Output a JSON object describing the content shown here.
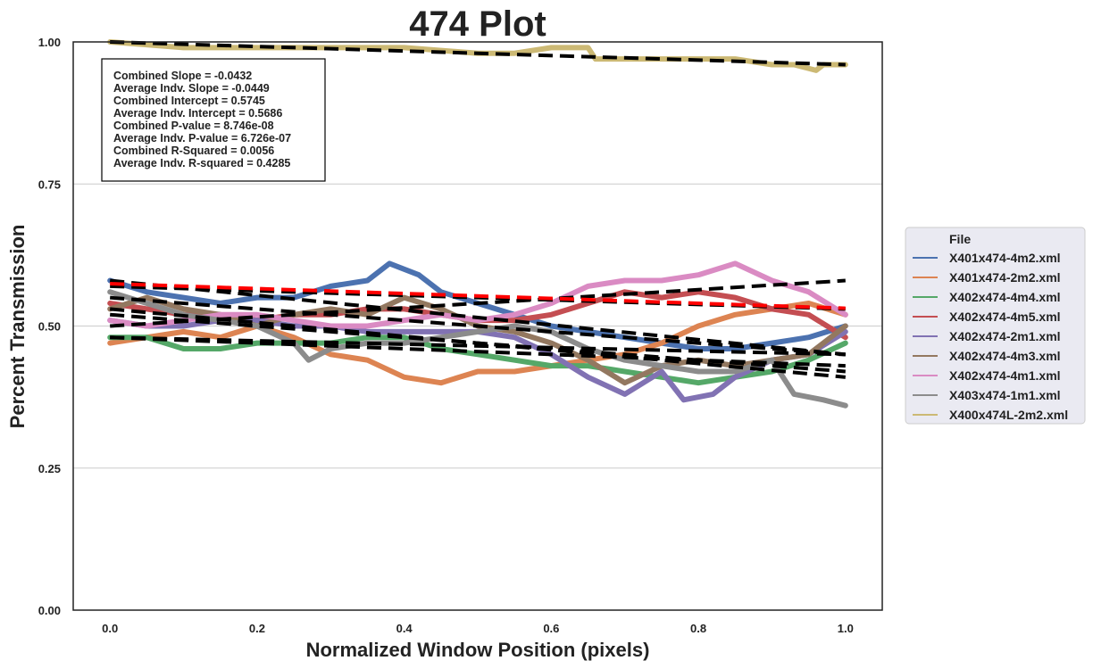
{
  "chart_data": {
    "type": "line",
    "title": "474 Plot",
    "xlabel": "Normalized Window Position (pixels)",
    "ylabel": "Percent Transmission",
    "xlim": [
      -0.05,
      1.05
    ],
    "ylim": [
      0.0,
      1.0
    ],
    "x_ticks": [
      0.0,
      0.2,
      0.4,
      0.6,
      0.8,
      1.0
    ],
    "x_tick_labels": [
      "0.0",
      "0.2",
      "0.4",
      "0.6",
      "0.8",
      "1.0"
    ],
    "y_ticks": [
      0.0,
      0.25,
      0.5,
      0.75,
      1.0
    ],
    "y_tick_labels": [
      "0.00",
      "0.25",
      "0.50",
      "0.75",
      "1.00"
    ],
    "grid": "horizontal",
    "legend_position": "outside-right",
    "legend_title": "File",
    "stats": [
      "Combined Slope = -0.0432",
      "Average Indv. Slope = -0.0449",
      "Combined Intercept = 0.5745",
      "Average Indv. Intercept = 0.5686",
      "Combined P-value = 8.746e-08",
      "Average Indv. P-value = 6.726e-07",
      "Combined R-Squared = 0.0056",
      "Average Indv. R-squared = 0.4285"
    ],
    "series": [
      {
        "name": "X401x474-4m2.xml",
        "color": "#4c72b0",
        "x": [
          0.0,
          0.05,
          0.1,
          0.15,
          0.2,
          0.25,
          0.3,
          0.35,
          0.38,
          0.42,
          0.45,
          0.5,
          0.55,
          0.6,
          0.65,
          0.7,
          0.75,
          0.8,
          0.85,
          0.9,
          0.95,
          1.0
        ],
        "y": [
          0.58,
          0.56,
          0.55,
          0.54,
          0.55,
          0.55,
          0.57,
          0.58,
          0.61,
          0.59,
          0.56,
          0.54,
          0.52,
          0.5,
          0.49,
          0.48,
          0.47,
          0.46,
          0.46,
          0.47,
          0.48,
          0.5
        ],
        "fit": [
          0.58,
          0.45
        ]
      },
      {
        "name": "X401x474-2m2.xml",
        "color": "#dd8452",
        "x": [
          0.0,
          0.05,
          0.1,
          0.15,
          0.2,
          0.25,
          0.3,
          0.35,
          0.4,
          0.45,
          0.5,
          0.55,
          0.6,
          0.65,
          0.7,
          0.75,
          0.8,
          0.85,
          0.9,
          0.95,
          1.0
        ],
        "y": [
          0.47,
          0.48,
          0.49,
          0.48,
          0.5,
          0.48,
          0.45,
          0.44,
          0.41,
          0.4,
          0.42,
          0.42,
          0.43,
          0.44,
          0.45,
          0.47,
          0.5,
          0.52,
          0.53,
          0.54,
          0.52
        ],
        "fit": [
          0.48,
          0.45
        ]
      },
      {
        "name": "X402x474-4m4.xml",
        "color": "#55a868",
        "x": [
          0.0,
          0.05,
          0.1,
          0.15,
          0.2,
          0.25,
          0.3,
          0.35,
          0.4,
          0.45,
          0.5,
          0.55,
          0.6,
          0.65,
          0.7,
          0.75,
          0.8,
          0.85,
          0.9,
          0.95,
          1.0
        ],
        "y": [
          0.48,
          0.48,
          0.46,
          0.46,
          0.47,
          0.47,
          0.47,
          0.48,
          0.48,
          0.46,
          0.45,
          0.44,
          0.43,
          0.43,
          0.42,
          0.41,
          0.4,
          0.41,
          0.42,
          0.44,
          0.47
        ],
        "fit": [
          0.48,
          0.43
        ]
      },
      {
        "name": "X402x474-4m5.xml",
        "color": "#c44e52",
        "x": [
          0.0,
          0.05,
          0.1,
          0.15,
          0.2,
          0.25,
          0.3,
          0.35,
          0.4,
          0.45,
          0.5,
          0.55,
          0.6,
          0.65,
          0.7,
          0.75,
          0.8,
          0.85,
          0.9,
          0.95,
          1.0
        ],
        "y": [
          0.54,
          0.53,
          0.52,
          0.52,
          0.51,
          0.52,
          0.52,
          0.53,
          0.53,
          0.52,
          0.51,
          0.51,
          0.52,
          0.54,
          0.56,
          0.55,
          0.56,
          0.55,
          0.53,
          0.52,
          0.48
        ],
        "fit": [
          0.57,
          0.53
        ]
      },
      {
        "name": "X402x474-2m1.xml",
        "color": "#8172b3",
        "x": [
          0.0,
          0.05,
          0.1,
          0.15,
          0.2,
          0.25,
          0.3,
          0.35,
          0.4,
          0.45,
          0.5,
          0.55,
          0.6,
          0.65,
          0.7,
          0.75,
          0.78,
          0.82,
          0.85,
          0.9,
          0.95,
          1.0
        ],
        "y": [
          0.51,
          0.5,
          0.5,
          0.51,
          0.51,
          0.5,
          0.5,
          0.49,
          0.49,
          0.49,
          0.49,
          0.48,
          0.45,
          0.41,
          0.38,
          0.42,
          0.37,
          0.38,
          0.41,
          0.44,
          0.45,
          0.49
        ],
        "fit": [
          0.52,
          0.42
        ]
      },
      {
        "name": "X402x474-4m3.xml",
        "color": "#937860",
        "x": [
          0.0,
          0.05,
          0.1,
          0.15,
          0.2,
          0.25,
          0.3,
          0.35,
          0.4,
          0.45,
          0.5,
          0.55,
          0.6,
          0.65,
          0.7,
          0.75,
          0.8,
          0.85,
          0.9,
          0.95,
          1.0
        ],
        "y": [
          0.53,
          0.55,
          0.53,
          0.52,
          0.5,
          0.52,
          0.53,
          0.52,
          0.55,
          0.53,
          0.5,
          0.49,
          0.47,
          0.44,
          0.4,
          0.43,
          0.44,
          0.43,
          0.44,
          0.45,
          0.5
        ],
        "fit": [
          0.55,
          0.45
        ]
      },
      {
        "name": "X402x474-4m1.xml",
        "color": "#da8bc3",
        "x": [
          0.0,
          0.05,
          0.1,
          0.15,
          0.2,
          0.25,
          0.3,
          0.35,
          0.4,
          0.45,
          0.5,
          0.55,
          0.6,
          0.65,
          0.7,
          0.75,
          0.8,
          0.85,
          0.9,
          0.95,
          1.0
        ],
        "y": [
          0.51,
          0.5,
          0.51,
          0.52,
          0.52,
          0.51,
          0.5,
          0.5,
          0.51,
          0.52,
          0.51,
          0.52,
          0.54,
          0.57,
          0.58,
          0.58,
          0.59,
          0.61,
          0.58,
          0.56,
          0.52
        ],
        "fit": [
          0.5,
          0.58
        ]
      },
      {
        "name": "X403x474-1m1.xml",
        "color": "#8c8c8c",
        "x": [
          0.0,
          0.05,
          0.1,
          0.15,
          0.2,
          0.25,
          0.27,
          0.3,
          0.35,
          0.4,
          0.45,
          0.5,
          0.55,
          0.6,
          0.65,
          0.7,
          0.75,
          0.8,
          0.85,
          0.9,
          0.93,
          0.97,
          1.0
        ],
        "y": [
          0.56,
          0.54,
          0.52,
          0.51,
          0.5,
          0.47,
          0.44,
          0.46,
          0.47,
          0.47,
          0.48,
          0.49,
          0.5,
          0.49,
          0.46,
          0.44,
          0.43,
          0.42,
          0.42,
          0.44,
          0.38,
          0.37,
          0.36
        ],
        "fit": [
          0.53,
          0.41
        ]
      },
      {
        "name": "X400x474L-2m2.xml",
        "color": "#ccb974",
        "x": [
          0.0,
          0.1,
          0.2,
          0.3,
          0.4,
          0.5,
          0.55,
          0.6,
          0.65,
          0.66,
          0.7,
          0.75,
          0.8,
          0.85,
          0.9,
          0.93,
          0.96,
          0.97,
          1.0
        ],
        "y": [
          1.0,
          0.99,
          0.99,
          0.99,
          0.99,
          0.98,
          0.98,
          0.99,
          0.99,
          0.97,
          0.97,
          0.97,
          0.97,
          0.97,
          0.96,
          0.96,
          0.95,
          0.96,
          0.96
        ],
        "fit": [
          1.0,
          0.96
        ]
      }
    ],
    "combined_fit": {
      "color": "#ff0000",
      "y_at_x0": 0.5745,
      "slope": -0.0432
    }
  }
}
